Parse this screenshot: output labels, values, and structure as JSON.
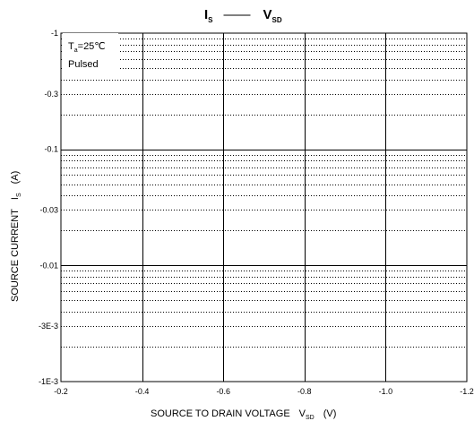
{
  "chart_data": {
    "type": "line",
    "title": {
      "left_main": "I",
      "left_sub": "S",
      "dash": "——",
      "right_main": "V",
      "right_sub": "SD"
    },
    "xlabel": {
      "text": "SOURCE TO DRAIN VOLTAGE",
      "symbol": "V",
      "sub": "SD",
      "unit": "(V)"
    },
    "ylabel": {
      "text": "SOURCE CURRENT",
      "symbol": "I",
      "sub": "S",
      "unit": "(A)"
    },
    "annotation": {
      "line1_main": "T",
      "line1_sub": "a",
      "line1_rest": "=25℃",
      "line2": "Pulsed"
    },
    "x_scale": "linear",
    "y_scale": "log",
    "xlim": [
      -0.2,
      -1.2
    ],
    "ylim": [
      0.001,
      1
    ],
    "x_ticks": [
      -0.2,
      -0.4,
      -0.6,
      -0.8,
      -1.0,
      -1.2
    ],
    "x_tick_labels": [
      "-0.2",
      "-0.4",
      "-0.6",
      "-0.8",
      "-1.0",
      "-1.2"
    ],
    "y_ticks": [
      1,
      0.3,
      0.1,
      0.03,
      0.01,
      0.003,
      0.001
    ],
    "y_tick_labels": [
      "-1",
      "-0.3",
      "-0.1",
      "-0.03",
      "-0.01",
      "-3E-3",
      "-1E-3"
    ],
    "y_major_gridlines": [
      0.1,
      0.01
    ],
    "y_minor_gridlines": [
      0.9,
      0.8,
      0.7,
      0.6,
      0.5,
      0.4,
      0.3,
      0.2,
      0.09,
      0.08,
      0.07,
      0.06,
      0.05,
      0.04,
      0.03,
      0.02,
      0.009,
      0.008,
      0.007,
      0.006,
      0.005,
      0.004,
      0.003,
      0.002
    ],
    "x_gridlines": [
      -0.4,
      -0.6,
      -0.8,
      -1.0
    ],
    "grid": true,
    "series": []
  }
}
